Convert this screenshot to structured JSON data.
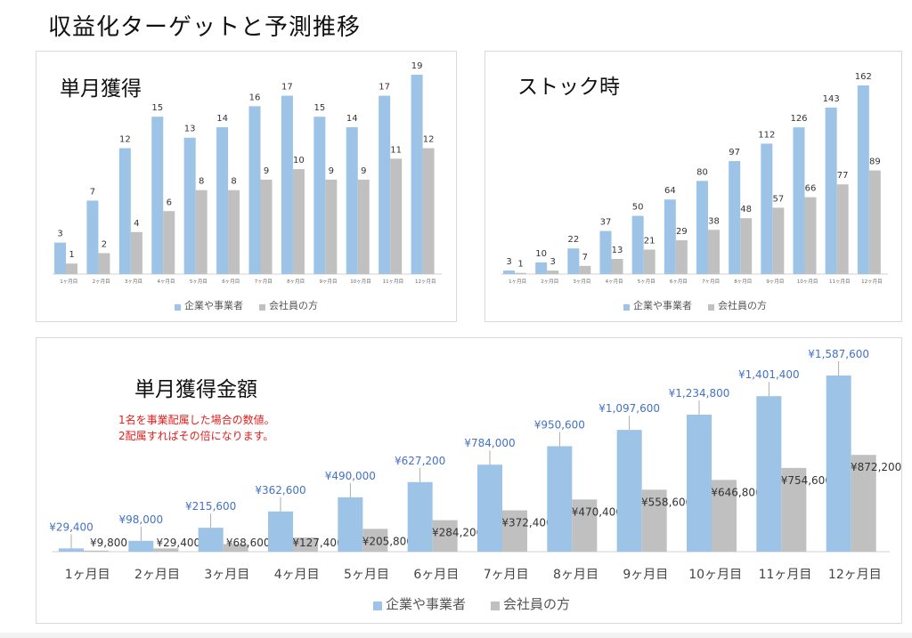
{
  "page_title": "収益化ターゲットと予測推移",
  "colors": {
    "series_a": "#9dc3e6",
    "series_b": "#c0c0c0",
    "label_blue": "#4472c4",
    "note_red": "#e02020"
  },
  "notes": [
    "1名を事業配属した場合の数値。",
    "2配属すればその倍になります。"
  ],
  "chart_data": [
    {
      "type": "bar",
      "title": "単月獲得",
      "categories": [
        "1ヶ月目",
        "2ヶ月目",
        "3ヶ月目",
        "4ヶ月目",
        "5ヶ月目",
        "6ヶ月目",
        "7ヶ月目",
        "8ヶ月目",
        "9ヶ月目",
        "10ヶ月目",
        "11ヶ月目",
        "12ヶ月目"
      ],
      "series": [
        {
          "name": "企業や事業者",
          "values": [
            3,
            7,
            12,
            15,
            13,
            14,
            16,
            17,
            15,
            14,
            17,
            19
          ]
        },
        {
          "name": "会社員の方",
          "values": [
            1,
            2,
            4,
            6,
            8,
            8,
            9,
            10,
            9,
            9,
            11,
            12
          ]
        }
      ],
      "ylim": [
        0,
        19
      ],
      "legend": "bottom",
      "grid": false
    },
    {
      "type": "bar",
      "title": "ストック時",
      "categories": [
        "1ヶ月目",
        "2ヶ月目",
        "3ヶ月目",
        "4ヶ月目",
        "5ヶ月目",
        "6ヶ月目",
        "7ヶ月目",
        "8ヶ月目",
        "9ヶ月目",
        "10ヶ月目",
        "11ヶ月目",
        "12ヶ月目"
      ],
      "series": [
        {
          "name": "企業や事業者",
          "values": [
            3,
            10,
            22,
            37,
            50,
            64,
            80,
            97,
            112,
            126,
            143,
            162
          ]
        },
        {
          "name": "会社員の方",
          "values": [
            1,
            3,
            7,
            13,
            21,
            29,
            38,
            48,
            57,
            66,
            77,
            89
          ]
        }
      ],
      "ylim": [
        0,
        162
      ],
      "legend": "bottom",
      "grid": false
    },
    {
      "type": "bar",
      "title": "単月獲得金額",
      "categories": [
        "1ヶ月目",
        "2ヶ月目",
        "3ヶ月目",
        "4ヶ月目",
        "5ヶ月目",
        "6ヶ月目",
        "7ヶ月目",
        "8ヶ月目",
        "9ヶ月目",
        "10ヶ月目",
        "11ヶ月目",
        "12ヶ月目"
      ],
      "series": [
        {
          "name": "企業や事業者",
          "values": [
            29400,
            98000,
            215600,
            362600,
            490000,
            627200,
            784000,
            950600,
            1097600,
            1234800,
            1401400,
            1587600
          ],
          "labels": [
            "¥29,400",
            "¥98,000",
            "¥215,600",
            "¥362,600",
            "¥490,000",
            "¥627,200",
            "¥784,000",
            "¥950,600",
            "¥1,097,600",
            "¥1,234,800",
            "¥1,401,400",
            "¥1,587,600"
          ]
        },
        {
          "name": "会社員の方",
          "values": [
            9800,
            29400,
            68600,
            127400,
            205800,
            284200,
            372400,
            470400,
            558600,
            646800,
            754600,
            872200
          ],
          "labels": [
            "¥9,800",
            "¥29,400",
            "¥68,600",
            "¥127,400",
            "¥205,800",
            "¥284,200",
            "¥372,400",
            "¥470,400",
            "¥558,600",
            "¥646,800",
            "¥754,600",
            "¥872,200"
          ]
        }
      ],
      "ylim": [
        0,
        1587600
      ],
      "legend": "bottom",
      "grid": false
    }
  ]
}
